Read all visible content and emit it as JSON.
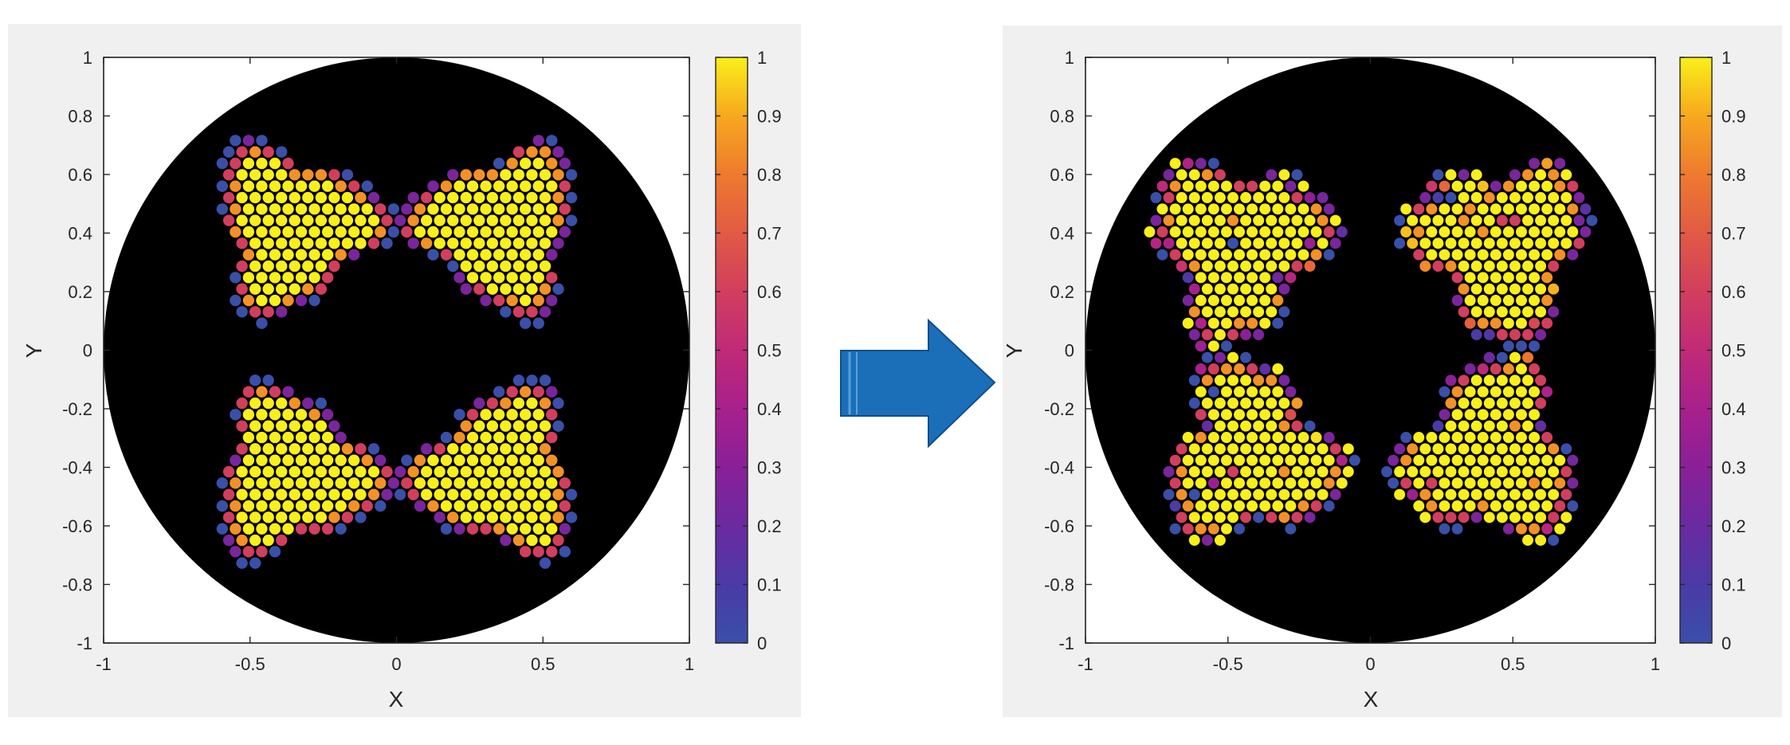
{
  "arrow": {
    "color": "#1a6fb8",
    "edge_color": "#0f4f8c",
    "icon": "right-arrow-icon"
  },
  "colormap": {
    "name": "plasma",
    "stops": [
      [
        0.0,
        "#3a4fa8"
      ],
      [
        0.1,
        "#4b3aa6"
      ],
      [
        0.2,
        "#6a2aa0"
      ],
      [
        0.3,
        "#8a2098"
      ],
      [
        0.4,
        "#a8208c"
      ],
      [
        0.5,
        "#c02a78"
      ],
      [
        0.6,
        "#d23e5e"
      ],
      [
        0.7,
        "#e15a44"
      ],
      [
        0.8,
        "#ee7a2e"
      ],
      [
        0.9,
        "#f7a81e"
      ],
      [
        1.0,
        "#f9ef1a"
      ]
    ]
  },
  "chart_data": [
    {
      "type": "heatmap",
      "title": "",
      "xlabel": "X",
      "ylabel": "Y",
      "xlim": [
        -1,
        1
      ],
      "ylim": [
        -1,
        1
      ],
      "x_ticks": [
        "-1",
        "-0.5",
        "0",
        "0.5",
        "1"
      ],
      "y_ticks": [
        "-1",
        "-0.8",
        "-0.6",
        "-0.4",
        "-0.2",
        "0",
        "0.2",
        "0.4",
        "0.6",
        "0.8",
        "1"
      ],
      "colorbar": {
        "min": 0,
        "max": 1,
        "ticks": [
          "0",
          "0.1",
          "0.2",
          "0.3",
          "0.4",
          "0.5",
          "0.6",
          "0.7",
          "0.8",
          "0.9",
          "1"
        ]
      },
      "background": "#000000",
      "pupil_radius": 1.0,
      "lattice": {
        "pitch": 0.045,
        "row_step": 0.039,
        "dot_radius": 0.0195
      },
      "pattern": {
        "kind": "four-pole",
        "poles": [
          {
            "cx": 0.35,
            "cy": 0.42,
            "spikes": "outward"
          },
          {
            "cx": -0.35,
            "cy": 0.42,
            "spikes": "outward"
          },
          {
            "cx": 0.35,
            "cy": -0.42,
            "spikes": "outward"
          },
          {
            "cx": -0.35,
            "cy": -0.42,
            "spikes": "outward"
          }
        ],
        "core_radius": 0.23,
        "edge_values": [
          0.0,
          0.25,
          0.6,
          0.85
        ],
        "noise": 0.0
      }
    },
    {
      "type": "heatmap",
      "title": "",
      "xlabel": "X",
      "ylabel": "Y",
      "xlim": [
        -1,
        1
      ],
      "ylim": [
        -1,
        1
      ],
      "x_ticks": [
        "-1",
        "-0.5",
        "0",
        "0.5",
        "1"
      ],
      "y_ticks": [
        "-1",
        "-0.8",
        "-0.6",
        "-0.4",
        "-0.2",
        "0",
        "0.2",
        "0.4",
        "0.6",
        "0.8",
        "1"
      ],
      "colorbar": {
        "min": 0,
        "max": 1,
        "ticks": [
          "0",
          "0.1",
          "0.2",
          "0.3",
          "0.4",
          "0.5",
          "0.6",
          "0.7",
          "0.8",
          "0.9",
          "1"
        ]
      },
      "background": "#000000",
      "pupil_radius": 1.0,
      "lattice": {
        "pitch": 0.045,
        "row_step": 0.039,
        "dot_radius": 0.0195
      },
      "pattern": {
        "kind": "four-pole-distorted",
        "poles": [
          {
            "cx": 0.46,
            "cy": 0.36,
            "spikes": "outward"
          },
          {
            "cx": -0.46,
            "cy": 0.36,
            "spikes": "outward"
          },
          {
            "cx": 0.42,
            "cy": -0.36,
            "spikes": "outward"
          },
          {
            "cx": -0.42,
            "cy": -0.36,
            "spikes": "outward"
          }
        ],
        "core_radius": 0.25,
        "edge_values": [
          0.0,
          0.25,
          0.6,
          0.85
        ],
        "noise": 0.35
      }
    }
  ]
}
